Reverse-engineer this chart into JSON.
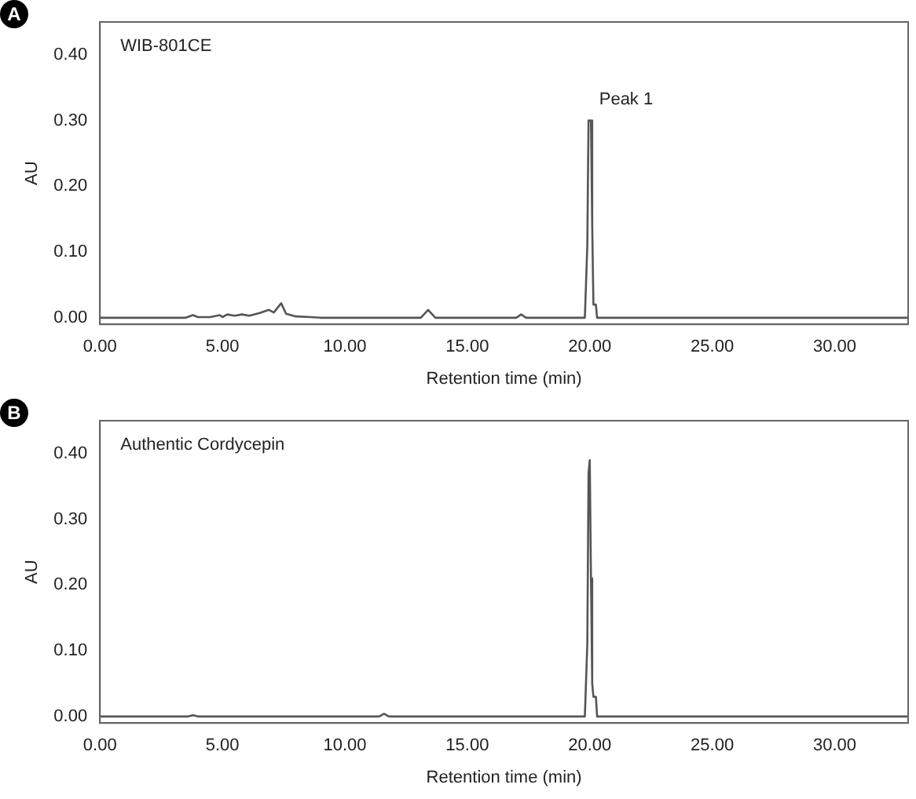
{
  "chart_data": [
    {
      "type": "line",
      "title": "A",
      "xlabel": "Retention time (min)",
      "ylabel": "AU",
      "annotations": [
        "WIB-801CE",
        {
          "text": "Peak 1",
          "x": 20.0,
          "y": 0.3
        }
      ],
      "grid": false,
      "legend": false,
      "marker": "none",
      "line_style": "solid",
      "xlim": [
        0,
        33
      ],
      "xticks": [
        {
          "value": 0,
          "label": "0.00"
        },
        {
          "value": 5,
          "label": "5.00"
        },
        {
          "value": 10,
          "label": "10.00"
        },
        {
          "value": 15,
          "label": "15.00"
        },
        {
          "value": 20,
          "label": "20.00"
        },
        {
          "value": 25,
          "label": "25.00"
        },
        {
          "value": 30,
          "label": "30.00"
        }
      ],
      "ylim": [
        -0.01,
        0.45
      ],
      "yticks": [
        {
          "value": 0,
          "label": "0.00"
        },
        {
          "value": 0.1,
          "label": "0.10"
        },
        {
          "value": 0.2,
          "label": "0.20"
        },
        {
          "value": 0.3,
          "label": "0.30"
        },
        {
          "value": 0.4,
          "label": "0.40"
        }
      ],
      "series": [
        {
          "color": "#555555",
          "x": [
            0,
            3.5,
            3.8,
            4.0,
            4.5,
            4.9,
            5.0,
            5.2,
            5.5,
            5.8,
            6.1,
            6.5,
            6.9,
            7.1,
            7.4,
            7.6,
            8.0,
            8.6,
            9.0,
            13.1,
            13.4,
            13.7,
            17.0,
            17.2,
            17.4,
            19.8,
            19.9,
            19.95,
            20.05,
            20.1,
            20.15,
            20.25,
            20.3,
            33
          ],
          "values": [
            0,
            0,
            0.004,
            0.001,
            0.001,
            0.004,
            0.001,
            0.005,
            0.003,
            0.005,
            0.003,
            0.007,
            0.012,
            0.008,
            0.022,
            0.006,
            0.002,
            0.001,
            0,
            0,
            0.012,
            0,
            0,
            0.005,
            0,
            0,
            0.11,
            0.3,
            0.3,
            0.14,
            0.02,
            0.02,
            0,
            0
          ]
        }
      ]
    },
    {
      "type": "line",
      "title": "B",
      "xlabel": "Retention time (min)",
      "ylabel": "AU",
      "annotations": [
        "Authentic Cordycepin"
      ],
      "grid": false,
      "legend": false,
      "marker": "none",
      "line_style": "solid",
      "xlim": [
        0,
        33
      ],
      "xticks": [
        {
          "value": 0,
          "label": "0.00"
        },
        {
          "value": 5,
          "label": "5.00"
        },
        {
          "value": 10,
          "label": "10.00"
        },
        {
          "value": 15,
          "label": "15.00"
        },
        {
          "value": 20,
          "label": "20.00"
        },
        {
          "value": 25,
          "label": "25.00"
        },
        {
          "value": 30,
          "label": "30.00"
        }
      ],
      "ylim": [
        -0.01,
        0.45
      ],
      "yticks": [
        {
          "value": 0,
          "label": "0.00"
        },
        {
          "value": 0.1,
          "label": "0.10"
        },
        {
          "value": 0.2,
          "label": "0.20"
        },
        {
          "value": 0.3,
          "label": "0.30"
        },
        {
          "value": 0.4,
          "label": "0.40"
        }
      ],
      "series": [
        {
          "color": "#555555",
          "x": [
            0,
            3.6,
            3.8,
            4.0,
            11.4,
            11.6,
            11.8,
            19.8,
            19.9,
            19.95,
            20.0,
            20.05,
            20.1,
            20.15,
            20.25,
            20.3,
            33
          ],
          "values": [
            0,
            0,
            0.002,
            0,
            0,
            0.004,
            0,
            0,
            0.11,
            0.37,
            0.39,
            0.21,
            0.05,
            0.03,
            0.03,
            0,
            0
          ]
        }
      ]
    }
  ]
}
